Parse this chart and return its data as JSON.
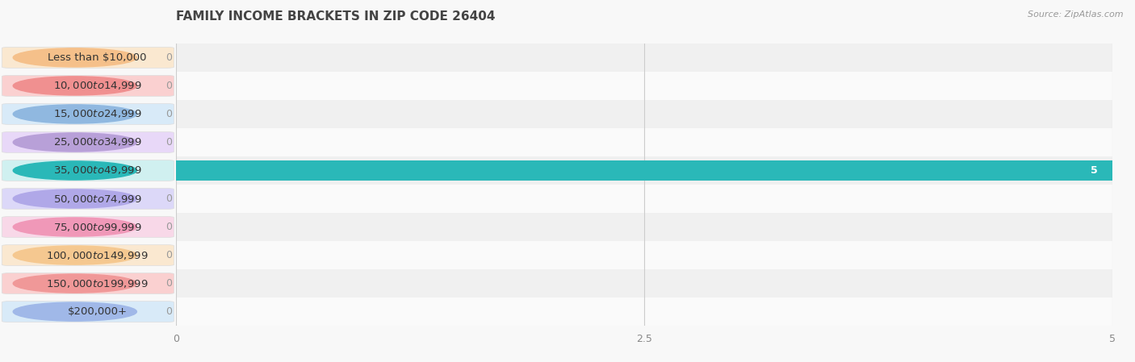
{
  "title": "FAMILY INCOME BRACKETS IN ZIP CODE 26404",
  "source": "Source: ZipAtlas.com",
  "categories": [
    "Less than $10,000",
    "$10,000 to $14,999",
    "$15,000 to $24,999",
    "$25,000 to $34,999",
    "$35,000 to $49,999",
    "$50,000 to $74,999",
    "$75,000 to $99,999",
    "$100,000 to $149,999",
    "$150,000 to $199,999",
    "$200,000+"
  ],
  "values": [
    0,
    0,
    0,
    0,
    5,
    0,
    0,
    0,
    0,
    0
  ],
  "bar_colors": [
    "#f5c08a",
    "#f09090",
    "#90b8e0",
    "#b8a0d8",
    "#2ab8b8",
    "#b0a8e8",
    "#f098b8",
    "#f5c890",
    "#f09898",
    "#a0b8e8"
  ],
  "label_bg_colors": [
    "#fae8d0",
    "#fad0d0",
    "#d8eaf8",
    "#e8d8f8",
    "#d0f0f0",
    "#dcd8f8",
    "#f8d8e8",
    "#fae8d0",
    "#fad0d0",
    "#d8eaf8"
  ],
  "row_bg_colors": [
    "#f0f0f0",
    "#fafafa",
    "#f0f0f0",
    "#fafafa",
    "#f0f0f0",
    "#fafafa",
    "#f0f0f0",
    "#fafafa",
    "#f0f0f0",
    "#fafafa"
  ],
  "value_label_color_normal": "#999999",
  "value_label_color_highlight": "#ffffff",
  "xlim": [
    0,
    5
  ],
  "xticks": [
    0,
    2.5,
    5
  ],
  "background_color": "#f8f8f8",
  "title_fontsize": 11,
  "label_fontsize": 9.5,
  "value_fontsize": 9
}
